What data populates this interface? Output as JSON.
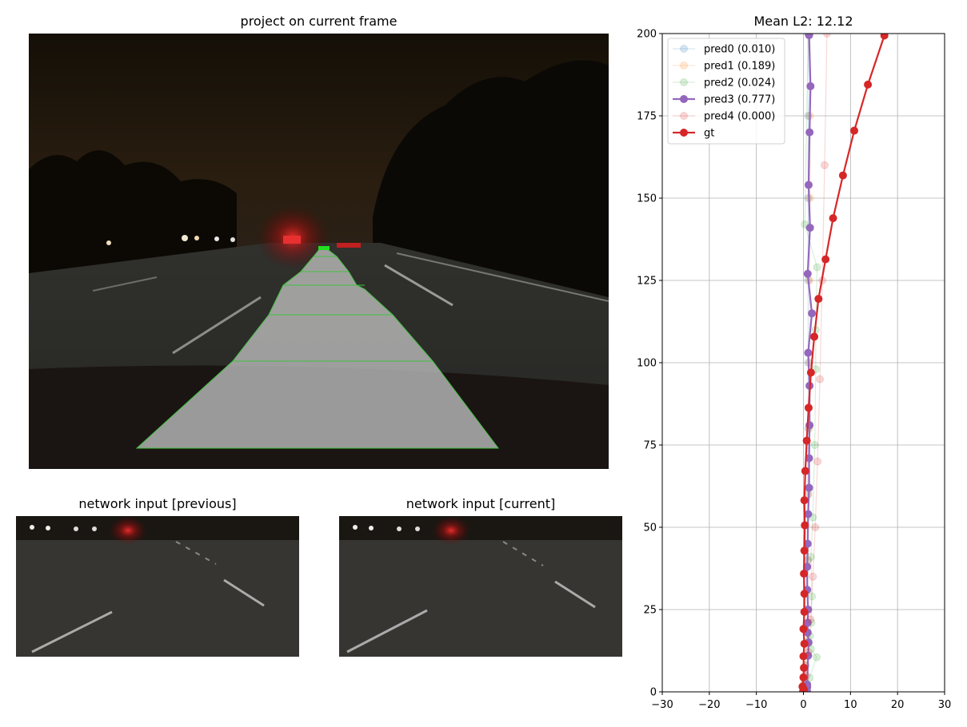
{
  "titles": {
    "main": "project on current frame",
    "prev": "network input [previous]",
    "curr": "network input [current]"
  },
  "chart_data": {
    "type": "line",
    "title": "Mean L2: 12.12",
    "xlabel": "",
    "ylabel": "",
    "xlim": [
      -30,
      30
    ],
    "ylim": [
      0,
      200
    ],
    "xticks": [
      -30,
      -20,
      -10,
      0,
      10,
      20,
      30
    ],
    "yticks": [
      0,
      25,
      50,
      75,
      100,
      125,
      150,
      175,
      200
    ],
    "grid": true,
    "legend_position": "top-left",
    "series": [
      {
        "name": "pred0 (0.010)",
        "color": "#1f77b4",
        "highlight": false,
        "points": [
          [
            0,
            0
          ],
          [
            0.3,
            3
          ],
          [
            0.5,
            8
          ],
          [
            0.7,
            15
          ],
          [
            0.8,
            25
          ],
          [
            0.9,
            40
          ],
          [
            0.9,
            60
          ],
          [
            1.0,
            80
          ],
          [
            1.0,
            100
          ],
          [
            1.0,
            125
          ],
          [
            1.0,
            150
          ],
          [
            1.0,
            175
          ],
          [
            1.0,
            200
          ]
        ]
      },
      {
        "name": "pred1 (0.189)",
        "color": "#ff7f0e",
        "highlight": false,
        "points": [
          [
            0,
            0
          ],
          [
            0.2,
            3
          ],
          [
            0.4,
            8
          ],
          [
            0.6,
            15
          ],
          [
            0.8,
            25
          ],
          [
            1.0,
            40
          ],
          [
            1.1,
            60
          ],
          [
            1.2,
            80
          ],
          [
            1.3,
            100
          ],
          [
            1.3,
            125
          ],
          [
            1.4,
            150
          ],
          [
            1.4,
            175
          ],
          [
            1.4,
            200
          ]
        ]
      },
      {
        "name": "pred2 (0.024)",
        "color": "#2ca02c",
        "highlight": false,
        "points": [
          [
            0.3,
            1
          ],
          [
            1.3,
            4.3
          ],
          [
            2.8,
            10.5
          ],
          [
            1.6,
            13
          ],
          [
            1.4,
            17
          ],
          [
            1.7,
            21
          ],
          [
            1.8,
            29
          ],
          [
            1.6,
            41
          ],
          [
            2.0,
            53
          ],
          [
            2.4,
            75
          ],
          [
            2.6,
            98
          ],
          [
            2.6,
            110
          ],
          [
            2.9,
            129
          ],
          [
            0.3,
            142
          ],
          [
            1.0,
            200
          ]
        ]
      },
      {
        "name": "pred3 (0.777)",
        "color": "#9467bd",
        "highlight": true,
        "points": [
          [
            0.8,
            0
          ],
          [
            0.6,
            0.7
          ],
          [
            0.8,
            1.4
          ],
          [
            0.8,
            2.2
          ],
          [
            1.0,
            11
          ],
          [
            1.1,
            15
          ],
          [
            0.9,
            18
          ],
          [
            0.9,
            21
          ],
          [
            1.0,
            25
          ],
          [
            0.8,
            31
          ],
          [
            0.8,
            38
          ],
          [
            0.9,
            45
          ],
          [
            1.0,
            54
          ],
          [
            1.2,
            62
          ],
          [
            1.2,
            71
          ],
          [
            1.3,
            81
          ],
          [
            1.3,
            93
          ],
          [
            1.0,
            103
          ],
          [
            1.8,
            115
          ],
          [
            0.9,
            127
          ],
          [
            1.4,
            141
          ],
          [
            1.1,
            154
          ],
          [
            1.3,
            170
          ],
          [
            1.5,
            184
          ],
          [
            1.2,
            199.5
          ]
        ]
      },
      {
        "name": "pred4 (0.000)",
        "color": "#d62728",
        "highlight": false,
        "points": [
          [
            0,
            0
          ],
          [
            0.5,
            5
          ],
          [
            1.0,
            12
          ],
          [
            1.5,
            22
          ],
          [
            2.0,
            35
          ],
          [
            2.5,
            50
          ],
          [
            3.0,
            70
          ],
          [
            3.5,
            95
          ],
          [
            4.0,
            125
          ],
          [
            4.5,
            160
          ],
          [
            5.0,
            200
          ]
        ]
      },
      {
        "name": "gt",
        "color": "#d62728",
        "highlight": true,
        "points": [
          [
            -0.1,
            0
          ],
          [
            0.0,
            0.3
          ],
          [
            0.1,
            0.7
          ],
          [
            -0.2,
            1.6
          ],
          [
            0.0,
            4.4
          ],
          [
            0.1,
            7.3
          ],
          [
            0.0,
            10.8
          ],
          [
            0.2,
            14.6
          ],
          [
            0.0,
            19.1
          ],
          [
            0.2,
            24.3
          ],
          [
            0.2,
            29.8
          ],
          [
            0.1,
            35.9
          ],
          [
            0.2,
            42.9
          ],
          [
            0.3,
            50.6
          ],
          [
            0.2,
            58.2
          ],
          [
            0.4,
            67.1
          ],
          [
            0.7,
            76.3
          ],
          [
            1.1,
            86.3
          ],
          [
            1.6,
            97.0
          ],
          [
            2.3,
            107.9
          ],
          [
            3.2,
            119.4
          ],
          [
            4.7,
            131.4
          ],
          [
            6.3,
            143.9
          ],
          [
            8.4,
            156.9
          ],
          [
            10.8,
            170.5
          ],
          [
            13.7,
            184.5
          ],
          [
            17.2,
            199.4
          ]
        ]
      }
    ]
  }
}
